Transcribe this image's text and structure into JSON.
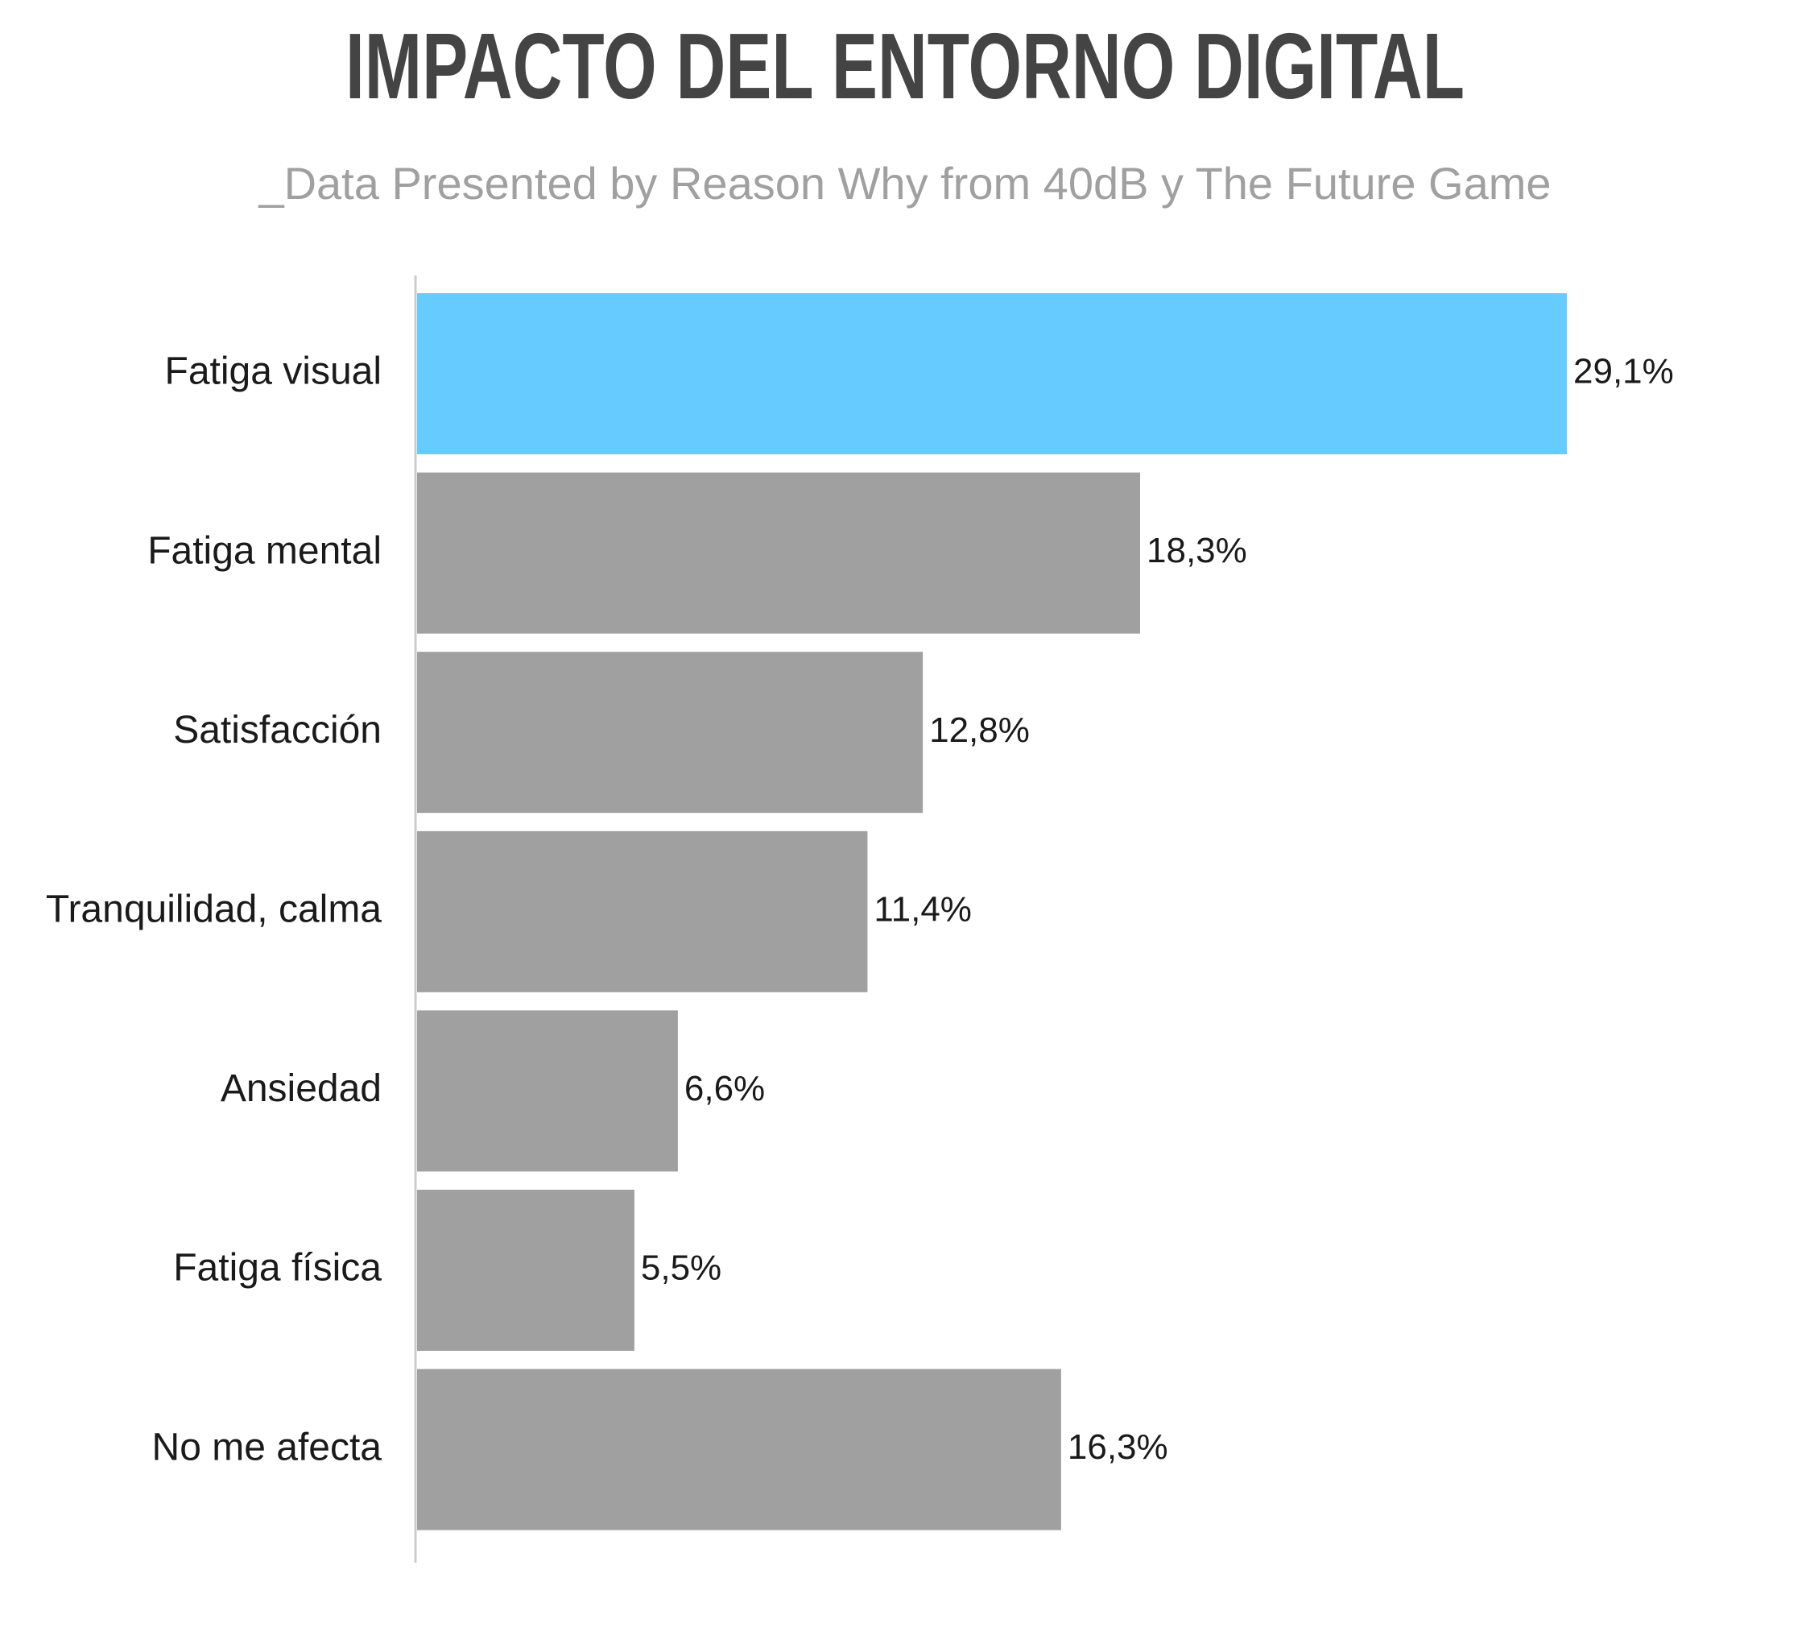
{
  "chart_data": {
    "type": "bar",
    "orientation": "horizontal",
    "title": "IMPACTO DEL ENTORNO DIGITAL",
    "subtitle": "_Data Presented by Reason Why from 40dB y The Future Game",
    "categories": [
      "Fatiga visual",
      "Fatiga mental",
      "Satisfacción",
      "Tranquilidad, calma",
      "Ansiedad",
      "Fatiga física",
      "No me afecta"
    ],
    "values": [
      29.1,
      18.3,
      12.8,
      11.4,
      6.6,
      5.5,
      16.3
    ],
    "value_labels": [
      "29,1%",
      "18,3%",
      "12,8%",
      "11,4%",
      "6,6%",
      "5,5%",
      "16,3%"
    ],
    "xlim": [
      0,
      29.1
    ],
    "grid": false,
    "legend": "none",
    "colors": {
      "highlight": "#66ccff",
      "default": "#a0a0a0",
      "axis": "#cccccc",
      "title": "#444444",
      "subtitle": "#a0a0a0",
      "text": "#1a1a1a"
    },
    "highlighted_index": 0
  }
}
